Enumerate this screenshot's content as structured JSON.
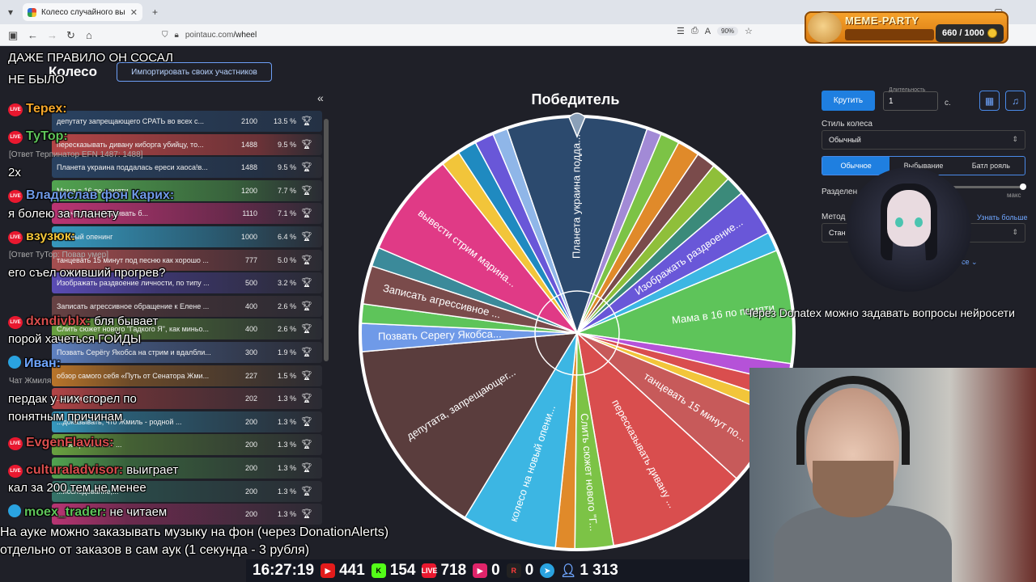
{
  "browser": {
    "tab_title": "Колесо случайного выбора – |",
    "url_host": "pointauc.com",
    "url_path": "/wheel",
    "zoom": "90%"
  },
  "meme_party": {
    "title": "MEME-PARTY",
    "count": "660 / 1000"
  },
  "app": {
    "title": "Колесо",
    "import_label": "Импортировать своих участников",
    "collapse": "«",
    "winner_title": "Победитель"
  },
  "participants": [
    {
      "label": "депутату запрещающего СРАТЬ во всех с...",
      "amount": "2100",
      "pct": "13.5 %",
      "color": "#2c4a6e"
    },
    {
      "label": "пересказывать дивану киборга убийцу, то...",
      "amount": "1488",
      "pct": "9.5 %",
      "color": "#d94e4e"
    },
    {
      "label": "Планета украина поддалась ереси хаоса!в...",
      "amount": "1488",
      "pct": "9.5 %",
      "color": "#2c4a6e"
    },
    {
      "label": "Мама в 16 по памяти",
      "amount": "1200",
      "pct": "7.7 %",
      "color": "#5ec45a"
    },
    {
      "label": "...начала и уговаривать б...",
      "amount": "1110",
      "pct": "7.1 %",
      "color": "#e03a86"
    },
    {
      "label": "...новый опенинг",
      "amount": "1000",
      "pct": "6.4 %",
      "color": "#3cb6e3"
    },
    {
      "label": "танцевать 15 минут под песню как хорошо ...",
      "amount": "777",
      "pct": "5.0 %",
      "color": "#c75a5a"
    },
    {
      "label": "Изображать раздвоение личности, по типу ...",
      "amount": "500",
      "pct": "3.2 %",
      "color": "#6957d8"
    },
    {
      "label": "Записать агрессивное обращение к Елене ...",
      "amount": "400",
      "pct": "2.6 %",
      "color": "#7a4b4b"
    },
    {
      "label": "Слить сюжет нового \"Гадкого Я\", как миньо...",
      "amount": "400",
      "pct": "2.6 %",
      "color": "#7cc346"
    },
    {
      "label": "Позвать Серёгу Якобса на стрим и вдалбли...",
      "amount": "300",
      "pct": "1.9 %",
      "color": "#6f9ae8"
    },
    {
      "label": "обзор самого себя «Путь от Сенатора Жми...",
      "amount": "227",
      "pct": "1.5 %",
      "color": "#e08a2a"
    },
    {
      "label": "...ровки это хоро...",
      "amount": "202",
      "pct": "1.3 %",
      "color": "#d94e4e"
    },
    {
      "label": "...доказывать, что Жмиль - родной ...",
      "amount": "200",
      "pct": "1.3 %",
      "color": "#3cb6e3"
    },
    {
      "label": "...воображаемых ...",
      "amount": "200",
      "pct": "1.3 %",
      "color": "#7cc346"
    },
    {
      "label": "...",
      "amount": "200",
      "pct": "1.3 %",
      "color": "#5ec45a"
    },
    {
      "label": "...исследование,...",
      "amount": "200",
      "pct": "1.3 %",
      "color": "#3b8a7a"
    },
    {
      "label": "...",
      "amount": "200",
      "pct": "1.3 %",
      "color": "#e03a86"
    }
  ],
  "wheel": {
    "slices": [
      {
        "label": "Планета украина подда...",
        "value": 9.5,
        "color": "#2c4a6e"
      },
      {
        "label": "",
        "value": 1.0,
        "color": "#a28ad6"
      },
      {
        "label": "",
        "value": 1.3,
        "color": "#7cc346"
      },
      {
        "label": "",
        "value": 1.5,
        "color": "#e08a2a"
      },
      {
        "label": "",
        "value": 1.3,
        "color": "#7a4b4b"
      },
      {
        "label": "",
        "value": 1.3,
        "color": "#8fbf3a"
      },
      {
        "label": "",
        "value": 1.3,
        "color": "#3b8a7a"
      },
      {
        "label": "Изображать раздвоение...",
        "value": 3.2,
        "color": "#6957d8"
      },
      {
        "label": "",
        "value": 1.3,
        "color": "#3cb6e3"
      },
      {
        "label": "Мама в 16 по памяти",
        "value": 7.7,
        "color": "#5ec45a"
      },
      {
        "label": "",
        "value": 1.3,
        "color": "#b552d8"
      },
      {
        "label": "",
        "value": 1.3,
        "color": "#d94e4e"
      },
      {
        "label": "",
        "value": 1.0,
        "color": "#f2c53a"
      },
      {
        "label": "танцевать 15 минут по...",
        "value": 5.0,
        "color": "#c75a5a"
      },
      {
        "label": "пересказывать дивану ...",
        "value": 9.5,
        "color": "#d94e4e"
      },
      {
        "label": "Слить сюжет нового \"Г...",
        "value": 2.6,
        "color": "#7cc346"
      },
      {
        "label": "",
        "value": 1.3,
        "color": "#e08a2a"
      },
      {
        "label": "колесо на новый опени...",
        "value": 6.4,
        "color": "#3cb6e3"
      },
      {
        "label": "депутата, запрещающег...",
        "value": 13.5,
        "color": "#5a3d3d"
      },
      {
        "label": "Позвать Серегу Якобса...",
        "value": 1.9,
        "color": "#6f9ae8"
      },
      {
        "label": "",
        "value": 1.3,
        "color": "#5ec45a"
      },
      {
        "label": "Записать агрессивное ...",
        "value": 2.6,
        "color": "#7a4b4b"
      },
      {
        "label": "",
        "value": 1.3,
        "color": "#3b8a9a"
      },
      {
        "label": "вывести стрим марина...",
        "value": 7.1,
        "color": "#e03a86"
      },
      {
        "label": "",
        "value": 1.3,
        "color": "#f2c53a"
      },
      {
        "label": "",
        "value": 1.3,
        "color": "#1f8ac0"
      },
      {
        "label": "",
        "value": 1.3,
        "color": "#6957d8"
      },
      {
        "label": "",
        "value": 1.0,
        "color": "#8fb6e8"
      }
    ]
  },
  "controls": {
    "spin_label": "Крутить",
    "duration_label": "Длительность",
    "duration_value": "1",
    "duration_unit": "с.",
    "style_label": "Стиль колеса",
    "style_value": "Обычный",
    "modes": [
      "Обычное",
      "Выбывание",
      "Батл рояль"
    ],
    "split_label": "Разделен",
    "max_label": "макс",
    "method_label": "Метод",
    "method_value": "Стан",
    "learn_more": "Узнать больше",
    "more": "есе"
  },
  "chat": [
    {
      "id": "c1",
      "text": "ДАЖЕ ПРАВИЛО ОН СОСАЛ"
    },
    {
      "id": "c2",
      "text": "НЕ БЫЛО"
    },
    {
      "id": "c3",
      "nick": "Терех:",
      "color": "#f4a62a"
    },
    {
      "id": "c4",
      "nick": "ТуТор:",
      "color": "#5ec45a"
    },
    {
      "id": "c5",
      "sub": "[Ответ Терпинатор EFN 1487: 1488]"
    },
    {
      "id": "c6",
      "text": "2x"
    },
    {
      "id": "c7",
      "nick": "Владислав фон Карих:",
      "color": "#6f9ae8"
    },
    {
      "id": "c8",
      "text": "я болею за планету"
    },
    {
      "id": "c9",
      "nick": "взузюк:",
      "color": "#f2c53a"
    },
    {
      "id": "c10",
      "sub": "[Ответ ТуТор: Повар умер]"
    },
    {
      "id": "c11",
      "text": "его съел оживший прогрев?"
    },
    {
      "id": "c12",
      "nick": "dxndivblx:",
      "color": "#d94e4e",
      "text": "бля бывает"
    },
    {
      "id": "c13",
      "text": "порой хачеться ГОЙДЫ"
    },
    {
      "id": "c14",
      "nick": "Иван:",
      "color": "#6fa6ff"
    },
    {
      "id": "c15",
      "sub": "Чат Жмиля"
    },
    {
      "id": "c16",
      "text": "пердак у них сгорел по"
    },
    {
      "id": "c17",
      "text": "понятным причинам"
    },
    {
      "id": "c18",
      "nick": "EvgenFlavius:",
      "color": "#d94e4e"
    },
    {
      "id": "c19",
      "nick": "culturaladvisor:",
      "color": "#d94e4e",
      "text": "выиграет"
    },
    {
      "id": "c20",
      "text": "кал за 200 тем не менее"
    },
    {
      "id": "c21",
      "nick": "moex_trader:",
      "color": "#5ec45a",
      "text": "не читаем"
    }
  ],
  "ticker": "Через Donatex можно задавать вопросы нейросети",
  "bottom_message": [
    "На ауке можно заказывать музыку на фон (через DonationAlerts)",
    "отдельно от заказов в сам аук (1 секунда - 3 рубля)"
  ],
  "stats": {
    "time": "16:27:19",
    "youtube": "441",
    "kick": "154",
    "vklive": "718",
    "rutube": "0",
    "rustats": "0",
    "telegram": "",
    "viewers": "1 313"
  }
}
